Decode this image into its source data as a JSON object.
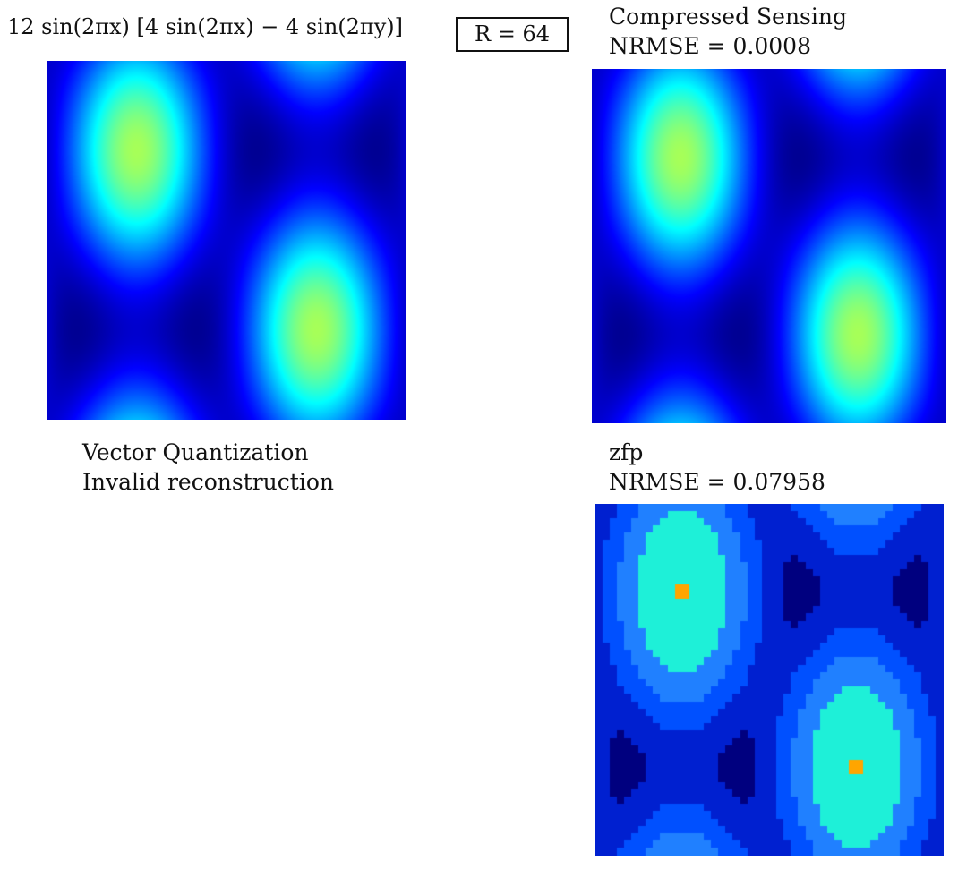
{
  "chart_data": {
    "type": "heatmap",
    "colormap": "jet",
    "function_label": "12 sin(2πx) [4 sin(2πx) − 4 sin(2πy)]",
    "rate_label": "R = 64",
    "panels": [
      {
        "id": "original",
        "title": "",
        "subtitle": "",
        "rendering": "smooth"
      },
      {
        "id": "compressed-sensing",
        "title": "Compressed Sensing",
        "subtitle": "NRMSE = 0.0008",
        "rendering": "smooth"
      },
      {
        "id": "vector-quantization",
        "title": "Vector Quantization",
        "subtitle": "Invalid reconstruction",
        "rendering": "none"
      },
      {
        "id": "zfp",
        "title": "zfp",
        "subtitle": "NRMSE = 0.07958",
        "rendering": "quantized",
        "levels": [
          "#00007f",
          "#0020d0",
          "#0050ff",
          "#2080ff",
          "#1ef0d8",
          "#ffa500"
        ]
      }
    ]
  }
}
